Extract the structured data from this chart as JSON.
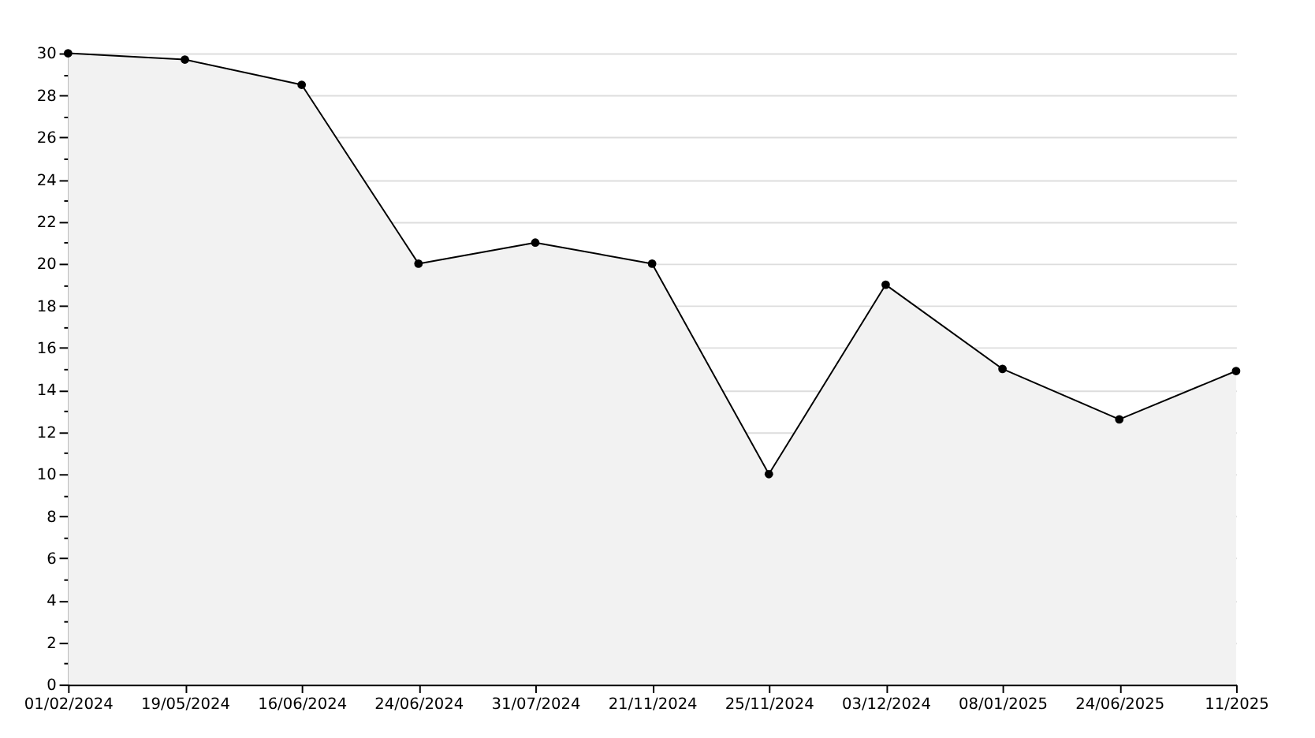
{
  "chart_data": {
    "type": "area",
    "categories": [
      "01/02/2024",
      "19/05/2024",
      "16/06/2024",
      "24/06/2024",
      "31/07/2024",
      "21/11/2024",
      "25/11/2024",
      "03/12/2024",
      "08/01/2025",
      "24/06/2025",
      "11/2025"
    ],
    "series": [
      {
        "color": "#f2f2f2",
        "values": [
          30,
          29.7,
          28.5,
          20,
          21,
          20,
          10,
          19,
          15,
          12.6,
          14.9
        ]
      }
    ],
    "ylim": [
      0,
      30
    ],
    "yticks": [
      0,
      {
        "value": 1,
        "label": null
      },
      2,
      {
        "value": 3,
        "label": null
      },
      4,
      {
        "value": 5,
        "label": null
      },
      6,
      {
        "value": 7,
        "label": null
      },
      8,
      {
        "value": 9,
        "label": null
      },
      10,
      {
        "value": 11,
        "label": null
      },
      12,
      {
        "value": 13,
        "label": null
      },
      14,
      {
        "value": 15,
        "label": null
      },
      16,
      {
        "value": 17,
        "label": null
      },
      18,
      {
        "value": 19,
        "label": null
      },
      20,
      {
        "value": 21,
        "label": null
      },
      22,
      {
        "value": 23,
        "label": null
      },
      24,
      {
        "value": 25,
        "label": null
      },
      26,
      {
        "value": 27,
        "label": null
      },
      28,
      {
        "value": 29,
        "label": null
      },
      30
    ],
    "grid": "y",
    "marker": "circle",
    "line_style": "solid",
    "legend": false
  }
}
